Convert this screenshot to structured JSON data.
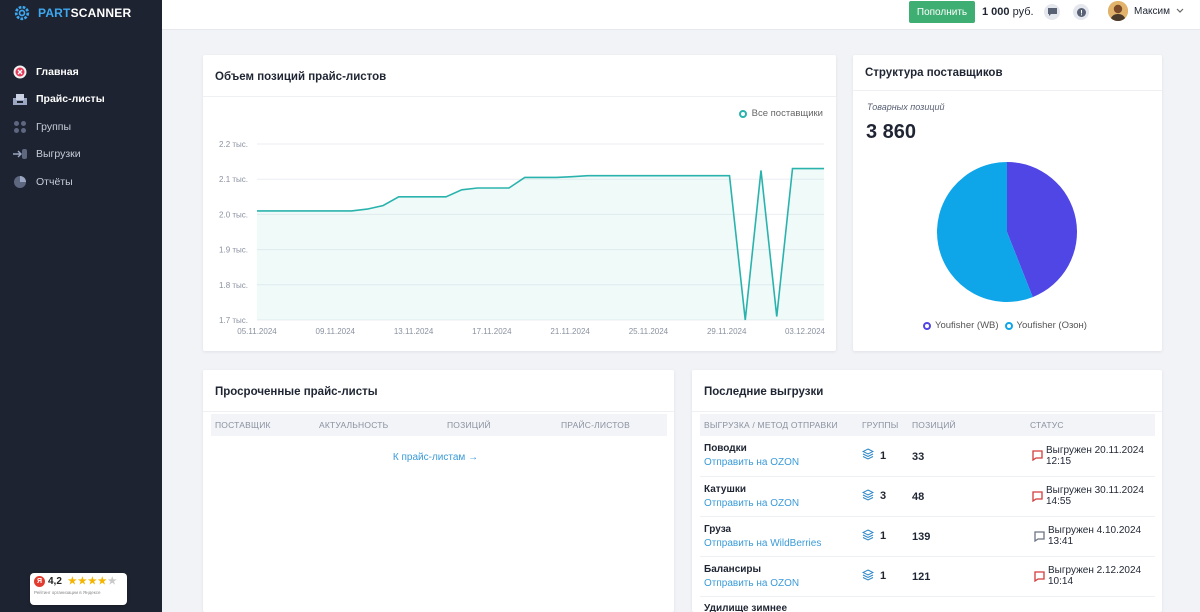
{
  "brand": {
    "part": "PART",
    "scanner": "SCANNER"
  },
  "sidebar": {
    "items": [
      {
        "label": "Главная",
        "icon": "home-badge-icon"
      },
      {
        "label": "Прайс-листы",
        "icon": "inbox-icon"
      },
      {
        "label": "Группы",
        "icon": "grid-dots-icon"
      },
      {
        "label": "Выгрузки",
        "icon": "export-icon"
      },
      {
        "label": "Отчёты",
        "icon": "pie-chart-icon"
      }
    ]
  },
  "rating": {
    "score": "4,2",
    "subtitle": "Рейтинг организации в Яндексе"
  },
  "topbar": {
    "topup_label": "Пополнить",
    "balance_amount": "1 000",
    "balance_currency": "руб.",
    "user_name": "Максим"
  },
  "volume_card": {
    "title": "Объем позиций прайс-листов",
    "legend": "Все поставщики"
  },
  "structure_card": {
    "title": "Структура поставщиков",
    "subtitle": "Товарных позиций",
    "total": "3 860",
    "legend": [
      "Youfisher (WB)",
      "Youfisher (Озон)"
    ]
  },
  "overdue_card": {
    "title": "Просроченные прайс-листы",
    "columns": [
      "Поставщик",
      "Актуальность",
      "Позиций",
      "Прайс-листов"
    ],
    "link": "К прайс-листам →"
  },
  "uploads_card": {
    "title": "Последние выгрузки",
    "columns": [
      "Выгрузка / метод отправки",
      "Группы",
      "Позиций",
      "Статус"
    ],
    "rows": [
      {
        "name": "Поводки",
        "method": "Отправить на OZON",
        "groups": "1",
        "positions": "33",
        "status": "Выгружен 20.11.2024 12:15"
      },
      {
        "name": "Катушки",
        "method": "Отправить на OZON",
        "groups": "3",
        "positions": "48",
        "status": "Выгружен 30.11.2024 14:55"
      },
      {
        "name": "Груза",
        "method": "Отправить на WildBerries",
        "groups": "1",
        "positions": "139",
        "status": "Выгружен 4.10.2024 13:41"
      },
      {
        "name": "Балансиры",
        "method": "Отправить на OZON",
        "groups": "1",
        "positions": "121",
        "status": "Выгружен 2.12.2024 10:14"
      },
      {
        "name": "Удилище зимнее",
        "method": "",
        "groups": "",
        "positions": "",
        "status": ""
      }
    ]
  },
  "chart_data": [
    {
      "type": "area",
      "series": [
        {
          "name": "Все поставщики",
          "color": "#2ab3ad",
          "values": [
            2010,
            2010,
            2010,
            2010,
            2010,
            2010,
            2010,
            2015,
            2025,
            2050,
            2050,
            2050,
            2050,
            2070,
            2075,
            2075,
            2075,
            2105,
            2105,
            2105,
            2107,
            2110,
            2110,
            2110,
            2110,
            2110,
            2110,
            2110,
            2110,
            2110,
            2110,
            1700,
            2125,
            1710,
            2130,
            2130,
            2130
          ]
        }
      ],
      "x_ticks": [
        "05.11.2024",
        "09.11.2024",
        "13.11.2024",
        "17.11.2024",
        "21.11.2024",
        "25.11.2024",
        "29.11.2024",
        "03.12.2024"
      ],
      "y_ticks": [
        "1.7 тыс.",
        "1.8 тыс.",
        "1.9 тыс.",
        "2.0 тыс.",
        "2.1 тыс.",
        "2.2 тыс."
      ],
      "ylim": [
        1700,
        2200
      ],
      "grid": true,
      "legend_position": "top-right"
    },
    {
      "type": "pie",
      "labels": [
        "Youfisher (WB)",
        "Youfisher (Озон)"
      ],
      "values": [
        44,
        56
      ],
      "colors": [
        "#4f46e5",
        "#0ea5e9"
      ]
    }
  ]
}
